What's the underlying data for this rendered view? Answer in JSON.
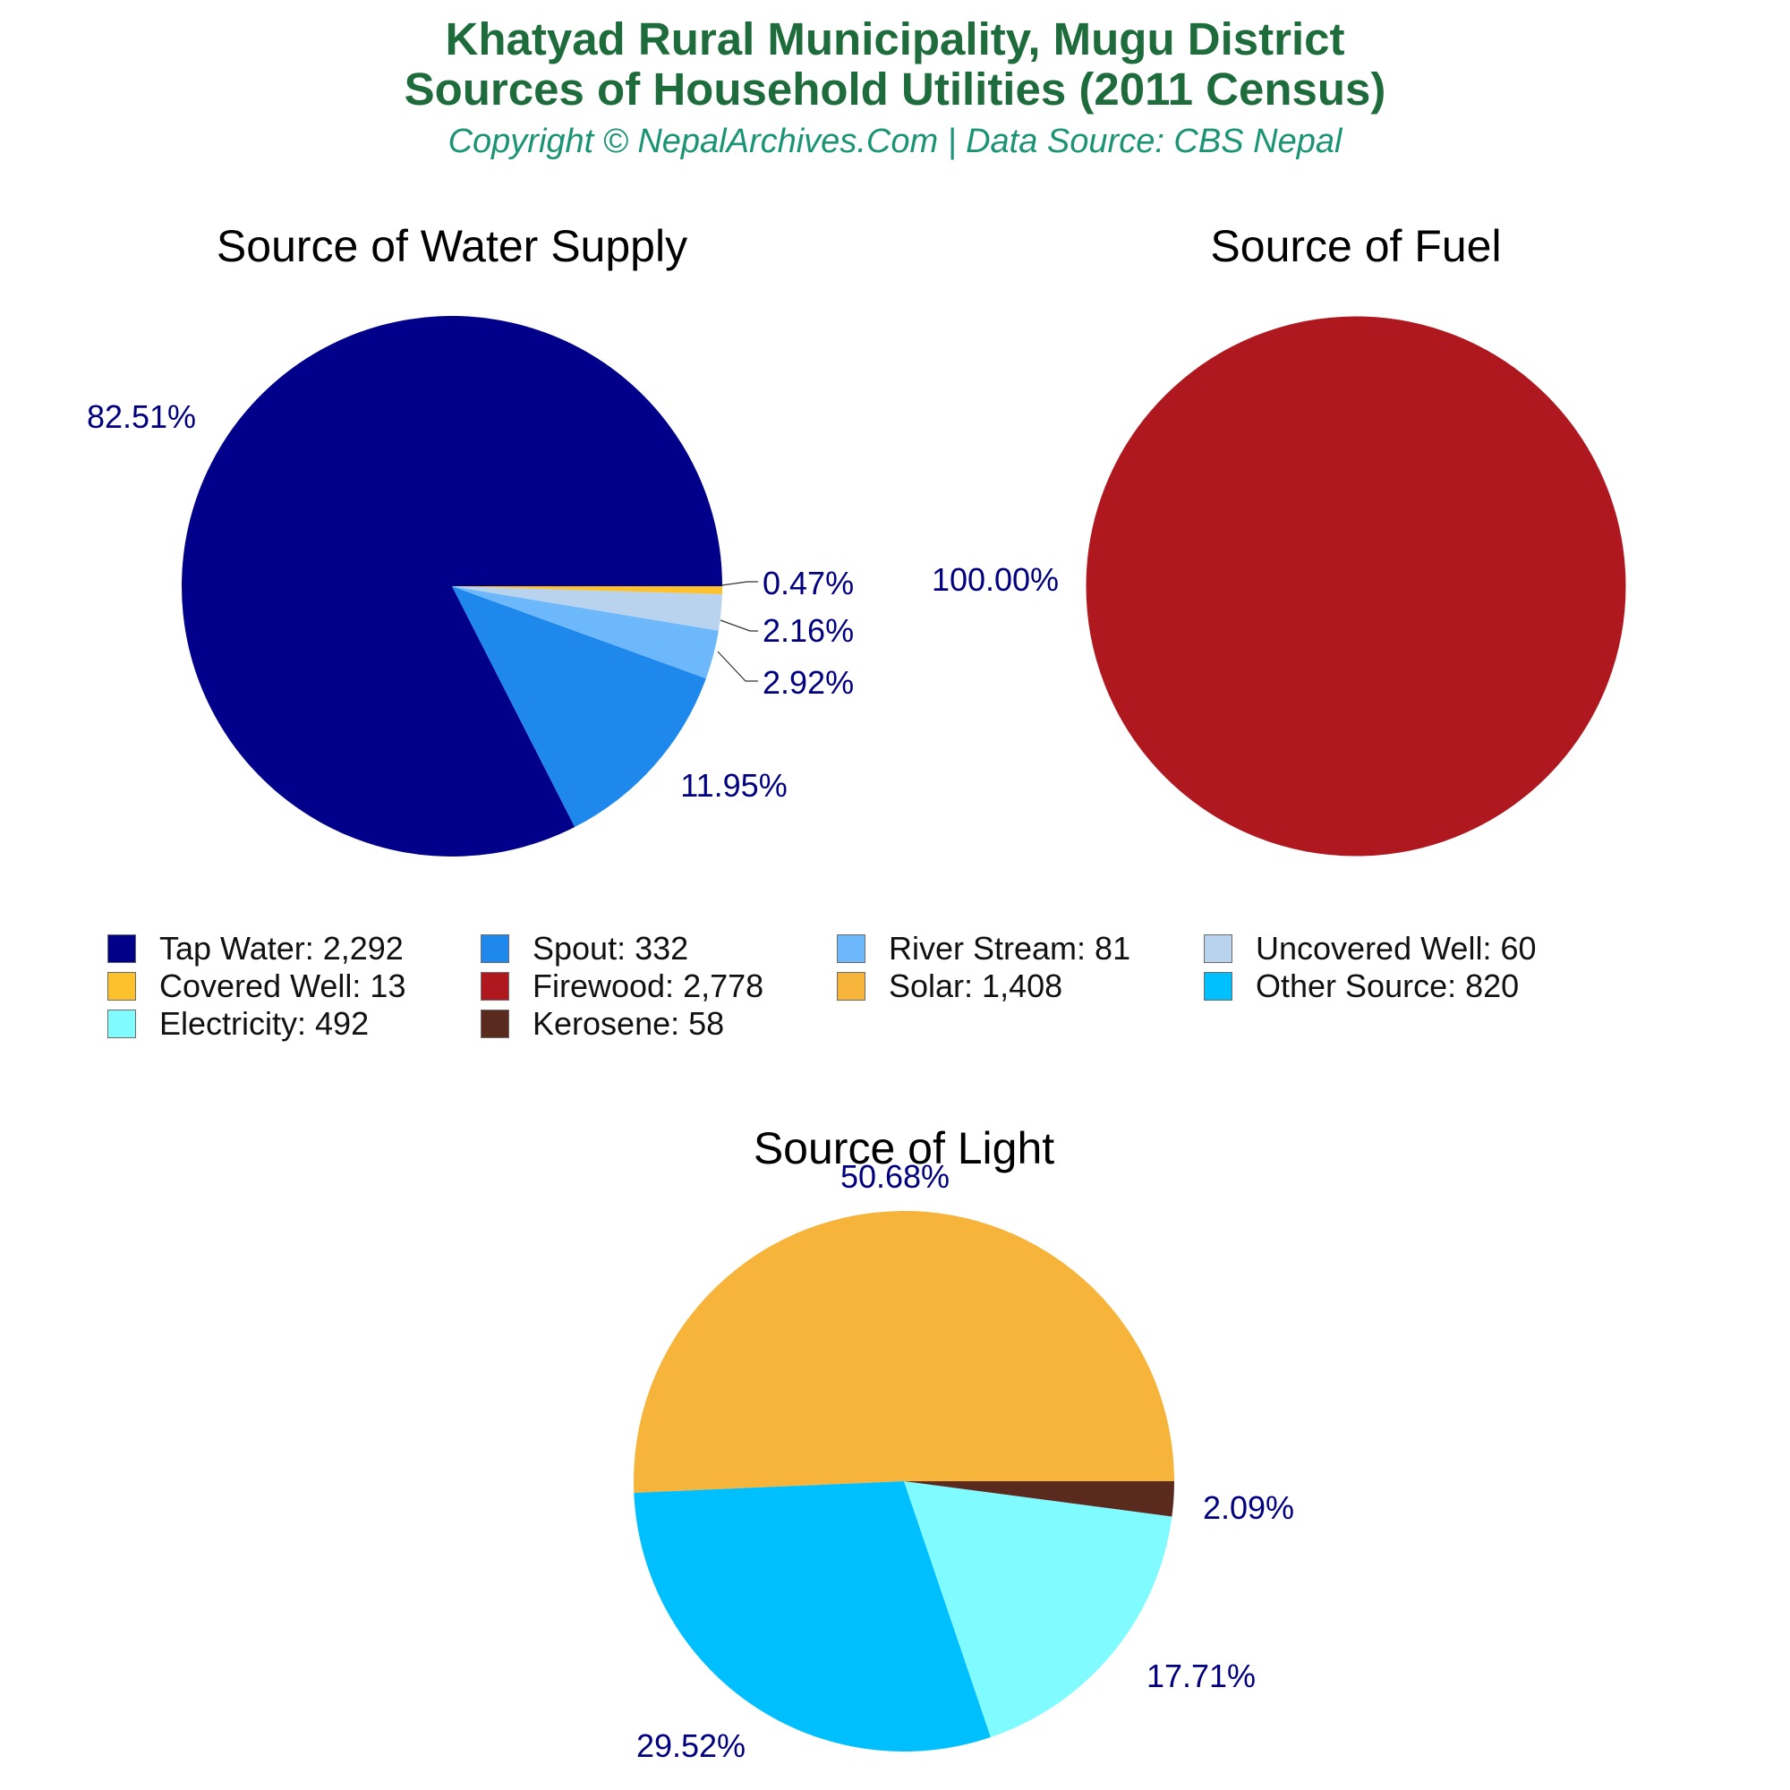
{
  "header": {
    "title_line1": "Khatyad Rural Municipality, Mugu District",
    "title_line2": "Sources of Household Utilities (2011 Census)",
    "subtitle": "Copyright © NepalArchives.Com | Data Source: CBS Nepal"
  },
  "colors": {
    "title": "#1e6b3c",
    "subtitle": "#1a9474",
    "pct_label": "#000080"
  },
  "legend": [
    {
      "label": "Tap Water: 2,292",
      "color": "#00008b"
    },
    {
      "label": "Spout: 332",
      "color": "#1e88ec"
    },
    {
      "label": "River Stream: 81",
      "color": "#6cb8fb"
    },
    {
      "label": "Uncovered Well: 60",
      "color": "#b9d3ee"
    },
    {
      "label": "Covered Well: 13",
      "color": "#fdc12b"
    },
    {
      "label": "Firewood: 2,778",
      "color": "#b01820"
    },
    {
      "label": "Solar: 1,408",
      "color": "#f6b43b"
    },
    {
      "label": "Other Source: 820",
      "color": "#00bfff"
    },
    {
      "label": "Electricity: 492",
      "color": "#80fbff"
    },
    {
      "label": "Kerosene: 58",
      "color": "#5a2a1e"
    }
  ],
  "chart_data": [
    {
      "type": "pie",
      "title": "Source of Water Supply",
      "slices": [
        {
          "name": "Tap Water",
          "value": 2292,
          "label": "82.51%",
          "color": "#00008b"
        },
        {
          "name": "Spout",
          "value": 332,
          "label": "11.95%",
          "color": "#1e88ec"
        },
        {
          "name": "River Stream",
          "value": 81,
          "label": "2.92%",
          "color": "#6cb8fb"
        },
        {
          "name": "Uncovered Well",
          "value": 60,
          "label": "2.16%",
          "color": "#b9d3ee"
        },
        {
          "name": "Covered Well",
          "value": 13,
          "label": "0.47%",
          "color": "#fdc12b"
        }
      ]
    },
    {
      "type": "pie",
      "title": "Source of Fuel",
      "slices": [
        {
          "name": "Firewood",
          "value": 2778,
          "label": "100.00%",
          "color": "#b01820"
        }
      ]
    },
    {
      "type": "pie",
      "title": "Source of Light",
      "slices": [
        {
          "name": "Solar",
          "value": 1408,
          "label": "50.68%",
          "color": "#f6b43b"
        },
        {
          "name": "Other Source",
          "value": 820,
          "label": "29.52%",
          "color": "#00bfff"
        },
        {
          "name": "Electricity",
          "value": 492,
          "label": "17.71%",
          "color": "#80fbff"
        },
        {
          "name": "Kerosene",
          "value": 58,
          "label": "2.09%",
          "color": "#5a2a1e"
        }
      ]
    }
  ]
}
